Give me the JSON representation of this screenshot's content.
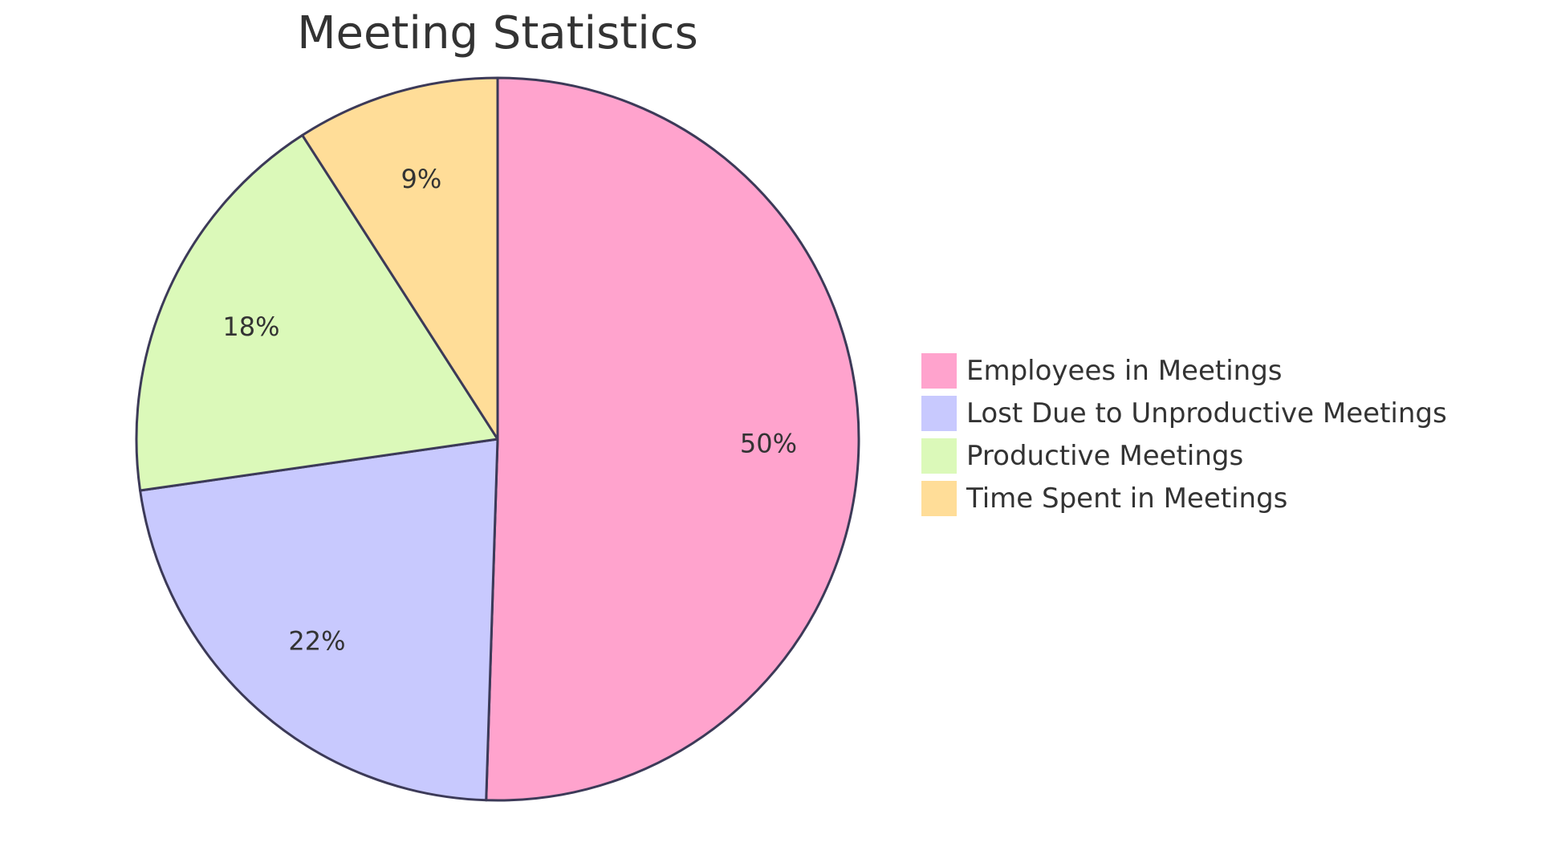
{
  "chart_data": {
    "type": "pie",
    "title": "Meeting Statistics",
    "slices": [
      {
        "label": "Employees in Meetings",
        "value": 50,
        "display": "50%",
        "color": "#ffa3cd"
      },
      {
        "label": "Lost Due to Unproductive Meetings",
        "value": 22,
        "display": "22%",
        "color": "#c8c9fe"
      },
      {
        "label": "Productive Meetings",
        "value": 18,
        "display": "18%",
        "color": "#dbf9b9"
      },
      {
        "label": "Time Spent in Meetings",
        "value": 9,
        "display": "9%",
        "color": "#ffdd98"
      }
    ],
    "legend_position": "right",
    "stroke_color": "#3c3a58"
  }
}
